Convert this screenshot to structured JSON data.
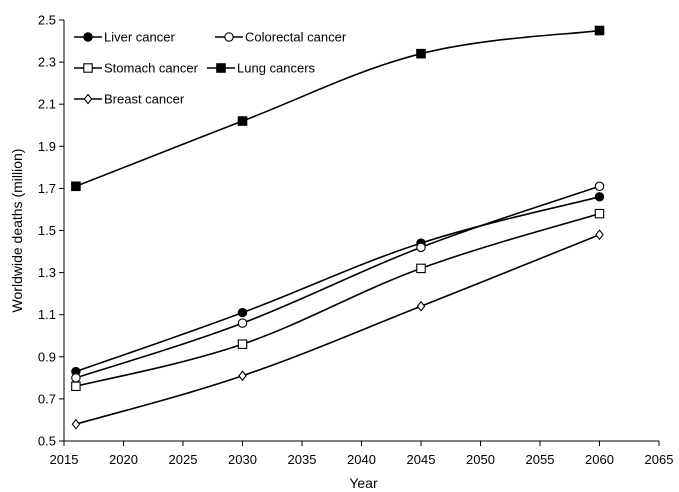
{
  "chart_data": {
    "type": "line",
    "xlabel": "Year",
    "ylabel": "Worldwide deaths (million)",
    "xlim": [
      2015,
      2065
    ],
    "ylim": [
      0.5,
      2.5
    ],
    "xticks": [
      2015,
      2020,
      2025,
      2030,
      2035,
      2040,
      2045,
      2050,
      2055,
      2060,
      2065
    ],
    "yticks": [
      "0.5",
      "0.7",
      "0.9",
      "1.1",
      "1.3",
      "1.5",
      "1.7",
      "1.9",
      "2.1",
      "2.3",
      "2.5"
    ],
    "grid": false,
    "legend_position": "top-left",
    "x": [
      2016,
      2030,
      2045,
      2060
    ],
    "series": [
      {
        "name": "Liver cancer",
        "marker": "filled-circle",
        "values": [
          0.83,
          1.11,
          1.44,
          1.66
        ]
      },
      {
        "name": "Colorectal cancer",
        "marker": "open-circle",
        "values": [
          0.8,
          1.06,
          1.42,
          1.71
        ]
      },
      {
        "name": "Stomach cancer",
        "marker": "open-square",
        "values": [
          0.76,
          0.96,
          1.32,
          1.58
        ]
      },
      {
        "name": "Lung cancers",
        "marker": "filled-square",
        "values": [
          1.71,
          2.02,
          2.34,
          2.45
        ]
      },
      {
        "name": "Breast cancer",
        "marker": "open-diamond",
        "values": [
          0.58,
          0.81,
          1.14,
          1.48
        ]
      }
    ]
  }
}
